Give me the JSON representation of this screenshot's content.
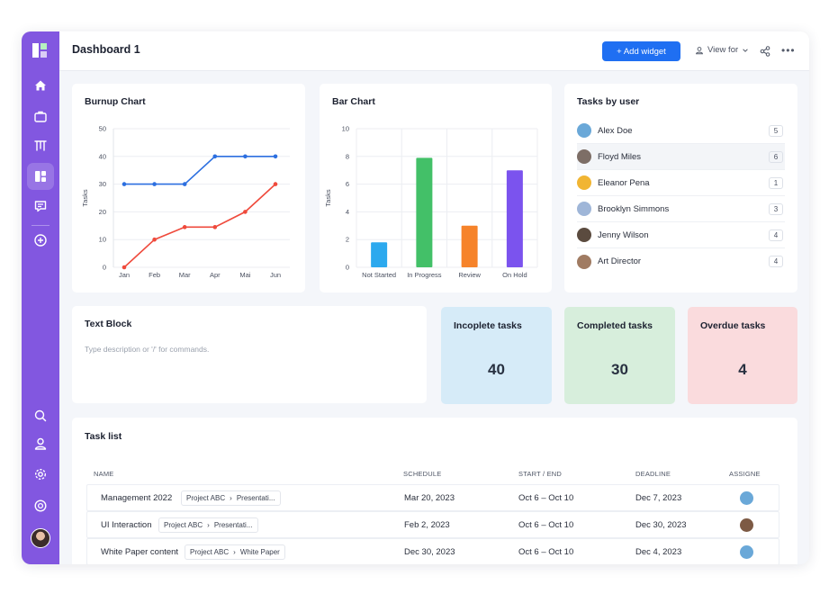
{
  "header": {
    "title": "Dashboard 1",
    "add_widget_label": "+ Add widget",
    "view_for_label": "View for"
  },
  "sidebar": {
    "icons": [
      "home-icon",
      "briefcase-icon",
      "columns-icon",
      "dashboard-icon",
      "chat-icon",
      "add-circle-icon",
      "search-icon",
      "user-icon",
      "settings-icon",
      "help-icon"
    ],
    "active": "dashboard-icon",
    "accent": "#8257e0"
  },
  "burnup": {
    "title": "Burnup Chart",
    "ylabel": "Tasks"
  },
  "barchart": {
    "title": "Bar Chart",
    "ylabel": "Tasks"
  },
  "chart_data": [
    {
      "type": "line",
      "title": "Burnup Chart",
      "xlabel": "",
      "ylabel": "Tasks",
      "categories": [
        "Jan",
        "Feb",
        "Mar",
        "Apr",
        "Mai",
        "Jun"
      ],
      "y_ticks": [
        0,
        10,
        20,
        30,
        40,
        50
      ],
      "ylim": [
        0,
        50
      ],
      "grid": true,
      "series": [
        {
          "values": [
            30,
            30,
            30,
            40,
            40,
            40
          ],
          "color": "#2c6fe0"
        },
        {
          "values": [
            0,
            10,
            14.5,
            14.5,
            20,
            30
          ],
          "color": "#ef4a3c"
        }
      ]
    },
    {
      "type": "bar",
      "title": "Bar Chart",
      "xlabel": "",
      "ylabel": "Tasks",
      "categories": [
        "Not Started",
        "In Progress",
        "Review",
        "On Hold"
      ],
      "values": [
        1.8,
        7.9,
        3,
        7
      ],
      "colors": [
        "#2ca9ee",
        "#43c068",
        "#f6832a",
        "#7b53ee"
      ],
      "y_ticks": [
        0,
        2,
        4,
        6,
        8,
        10
      ],
      "ylim": [
        0,
        10
      ],
      "grid": true
    }
  ],
  "tasks_by_user": {
    "title": "Tasks  by user",
    "users": [
      {
        "name": "Alex Doe",
        "count": "5",
        "color": "#6aa8d8"
      },
      {
        "name": "Floyd Miles",
        "count": "6",
        "color": "#7d6e66"
      },
      {
        "name": "Eleanor Pena",
        "count": "1",
        "color": "#f1b533"
      },
      {
        "name": "Brooklyn Simmons",
        "count": "3",
        "color": "#9fb6d8"
      },
      {
        "name": "Jenny Wilson",
        "count": "4",
        "color": "#5b4b3f"
      },
      {
        "name": "Art Director",
        "count": "4",
        "color": "#a07b62"
      }
    ]
  },
  "text_block": {
    "title": "Text Block",
    "placeholder": "Type description or '/' for commands."
  },
  "stats": [
    {
      "title": "Incoplete tasks",
      "value": "40",
      "bg": "#d6ebf8"
    },
    {
      "title": "Completed tasks",
      "value": "30",
      "bg": "#d7eedc"
    },
    {
      "title": "Overdue tasks",
      "value": "4",
      "bg": "#fadbdd"
    }
  ],
  "task_list": {
    "title": "Task list",
    "columns": [
      "NAME",
      "SCHEDULE",
      "START / END",
      "DEADLINE",
      "ASSIGNE"
    ],
    "rows": [
      {
        "name": "Management 2022",
        "project": "Project ABC",
        "sub": "Presentati...",
        "schedule": "Mar 20, 2023",
        "range": "Oct 6 – Oct 10",
        "deadline": "Dec 7, 2023",
        "avatar_color": "#6aa8d8"
      },
      {
        "name": "UI Interaction",
        "project": "Project ABC",
        "sub": "Presentati...",
        "schedule": "Feb 2, 2023",
        "range": "Oct 6 – Oct 10",
        "deadline": "Dec 30, 2023",
        "avatar_color": "#7d5a44"
      },
      {
        "name": "White Paper content",
        "project": "Project ABC",
        "sub": "White Paper",
        "schedule": "Dec 30, 2023",
        "range": "Oct 6 – Oct 10",
        "deadline": "Dec 4, 2023",
        "avatar_color": "#6aa8d8"
      }
    ]
  }
}
